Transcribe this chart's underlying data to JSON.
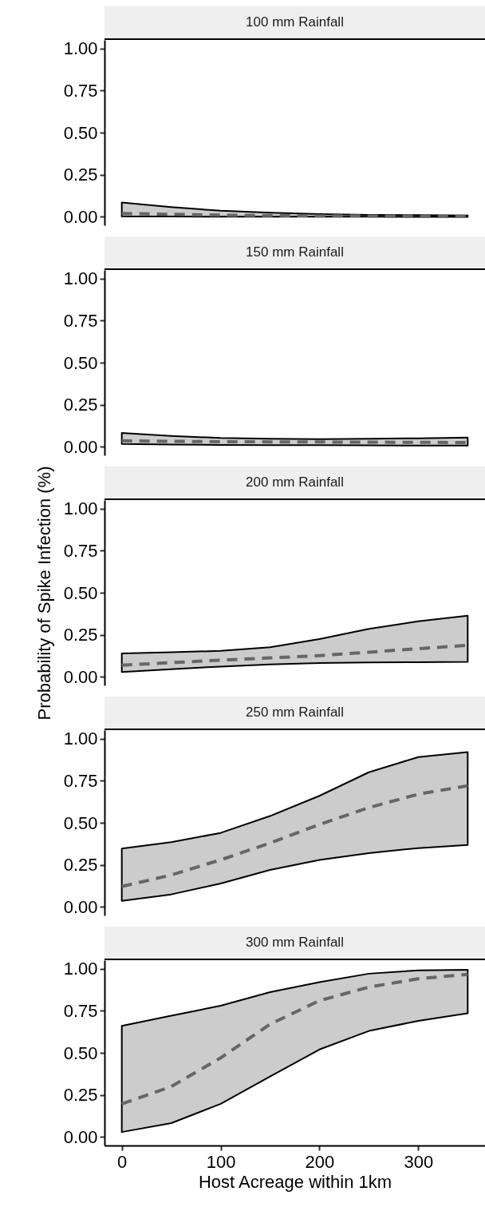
{
  "chart_data": [
    {
      "type": "line",
      "title": "100 mm Rainfall",
      "x": [
        0,
        50,
        100,
        150,
        200,
        250,
        300,
        350
      ],
      "xlim": [
        -17.5,
        367.5
      ],
      "ylim": [
        -0.05,
        1.05
      ],
      "yticks": [
        {
          "value": 0,
          "label": "0.00"
        },
        {
          "value": 0.25,
          "label": "0.25"
        },
        {
          "value": 0.5,
          "label": "0.50"
        },
        {
          "value": 0.75,
          "label": "0.75"
        },
        {
          "value": 1,
          "label": "1.00"
        }
      ],
      "tick_labels": "y",
      "line_style": "dashed",
      "series": [
        {
          "color": "#666666",
          "values": [
            0.02,
            0.015,
            0.01,
            0.008,
            0.006,
            0.005,
            0.004,
            0.003
          ],
          "lower": [
            0.002,
            0.002,
            0.001,
            0.001,
            0.001,
            0.001,
            0.0,
            0.0
          ],
          "upper": [
            0.085,
            0.058,
            0.036,
            0.025,
            0.016,
            0.012,
            0.01,
            0.008
          ]
        }
      ]
    },
    {
      "type": "line",
      "title": "150 mm Rainfall",
      "x": [
        0,
        50,
        100,
        150,
        200,
        250,
        300,
        350
      ],
      "xlim": [
        -17.5,
        367.5
      ],
      "ylim": [
        -0.05,
        1.05
      ],
      "yticks": [
        {
          "value": 0,
          "label": "0.00"
        },
        {
          "value": 0.25,
          "label": "0.25"
        },
        {
          "value": 0.5,
          "label": "0.50"
        },
        {
          "value": 0.75,
          "label": "0.75"
        },
        {
          "value": 1,
          "label": "1.00"
        }
      ],
      "tick_labels": "y",
      "line_style": "dashed",
      "series": [
        {
          "color": "#666666",
          "values": [
            0.036,
            0.033,
            0.031,
            0.03,
            0.029,
            0.028,
            0.027,
            0.026
          ],
          "lower": [
            0.017,
            0.014,
            0.012,
            0.011,
            0.01,
            0.009,
            0.008,
            0.008
          ],
          "upper": [
            0.083,
            0.065,
            0.053,
            0.048,
            0.046,
            0.048,
            0.051,
            0.055
          ]
        }
      ]
    },
    {
      "type": "line",
      "title": "200 mm Rainfall",
      "ylabel": "Probability of Spike Infection (%)",
      "x": [
        0,
        50,
        100,
        150,
        200,
        250,
        300,
        350
      ],
      "xlim": [
        -17.5,
        367.5
      ],
      "ylim": [
        -0.05,
        1.05
      ],
      "yticks": [
        {
          "value": 0,
          "label": "0.00"
        },
        {
          "value": 0.25,
          "label": "0.25"
        },
        {
          "value": 0.5,
          "label": "0.50"
        },
        {
          "value": 0.75,
          "label": "0.75"
        },
        {
          "value": 1,
          "label": "1.00"
        }
      ],
      "tick_labels": "y",
      "line_style": "dashed",
      "series": [
        {
          "color": "#666666",
          "values": [
            0.07,
            0.085,
            0.1,
            0.113,
            0.127,
            0.147,
            0.168,
            0.188
          ],
          "lower": [
            0.03,
            0.046,
            0.062,
            0.075,
            0.083,
            0.086,
            0.088,
            0.09
          ],
          "upper": [
            0.14,
            0.147,
            0.155,
            0.176,
            0.225,
            0.285,
            0.33,
            0.364
          ]
        }
      ]
    },
    {
      "type": "line",
      "title": "250 mm Rainfall",
      "x": [
        0,
        50,
        100,
        150,
        200,
        250,
        300,
        350
      ],
      "xlim": [
        -17.5,
        367.5
      ],
      "ylim": [
        -0.05,
        1.05
      ],
      "yticks": [
        {
          "value": 0,
          "label": "0.00"
        },
        {
          "value": 0.25,
          "label": "0.25"
        },
        {
          "value": 0.5,
          "label": "0.50"
        },
        {
          "value": 0.75,
          "label": "0.75"
        },
        {
          "value": 1,
          "label": "1.00"
        }
      ],
      "tick_labels": "y",
      "line_style": "dashed",
      "series": [
        {
          "color": "#666666",
          "values": [
            0.122,
            0.19,
            0.28,
            0.38,
            0.49,
            0.59,
            0.67,
            0.72
          ],
          "lower": [
            0.037,
            0.075,
            0.14,
            0.22,
            0.28,
            0.32,
            0.35,
            0.368
          ],
          "upper": [
            0.347,
            0.385,
            0.44,
            0.54,
            0.66,
            0.8,
            0.89,
            0.92
          ]
        }
      ]
    },
    {
      "type": "line",
      "title": "300 mm Rainfall",
      "xlabel": "Host Acreage within 1km",
      "x": [
        0,
        50,
        100,
        150,
        200,
        250,
        300,
        350
      ],
      "xlim": [
        -17.5,
        367.5
      ],
      "xticks": [
        0,
        100,
        200,
        300
      ],
      "ylim": [
        -0.05,
        1.05
      ],
      "yticks": [
        {
          "value": 0,
          "label": "0.00"
        },
        {
          "value": 0.25,
          "label": "0.25"
        },
        {
          "value": 0.5,
          "label": "0.50"
        },
        {
          "value": 0.75,
          "label": "0.75"
        },
        {
          "value": 1,
          "label": "1.00"
        }
      ],
      "line_style": "dashed",
      "series": [
        {
          "color": "#666666",
          "values": [
            0.197,
            0.3,
            0.47,
            0.67,
            0.81,
            0.89,
            0.94,
            0.966
          ],
          "lower": [
            0.03,
            0.083,
            0.197,
            0.36,
            0.52,
            0.63,
            0.69,
            0.735
          ],
          "upper": [
            0.66,
            0.72,
            0.78,
            0.86,
            0.92,
            0.97,
            0.99,
            0.993
          ]
        }
      ]
    }
  ]
}
